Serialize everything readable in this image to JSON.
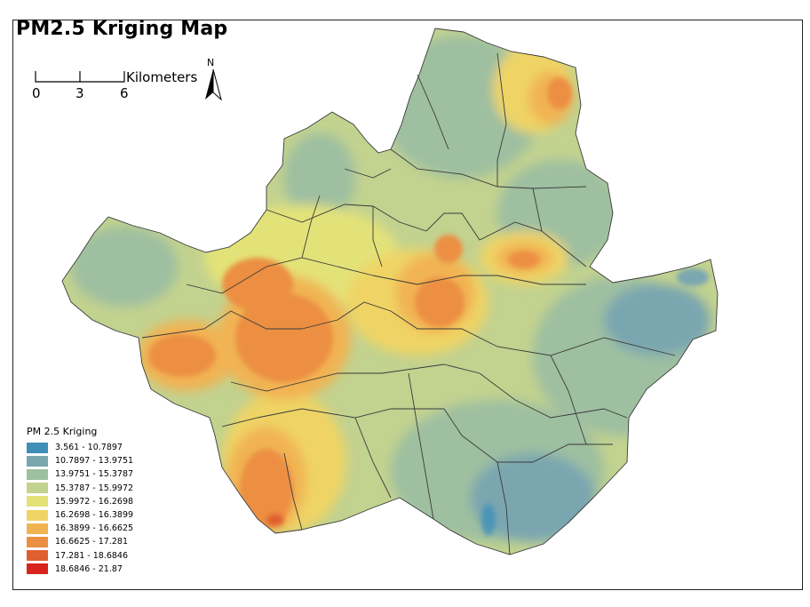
{
  "title": "PM2.5 Kriging Map",
  "scale": {
    "ticks": [
      "0",
      "3",
      "6"
    ],
    "unit": "Kilometers"
  },
  "north_label": "N",
  "legend": {
    "title": "PM 2.5 Kriging",
    "classes": [
      {
        "label": "3.561 - 10.7897",
        "color": "#3f8fb9"
      },
      {
        "label": "10.7897 - 13.9751",
        "color": "#7aa6b0"
      },
      {
        "label": "13.9751 - 15.3787",
        "color": "#9ebfa0"
      },
      {
        "label": "15.3787 - 15.9972",
        "color": "#c2d28f"
      },
      {
        "label": "15.9972 - 16.2698",
        "color": "#e3e279"
      },
      {
        "label": "16.2698 - 16.3899",
        "color": "#efd465"
      },
      {
        "label": "16.3899 - 16.6625",
        "color": "#f1b352"
      },
      {
        "label": "16.6625 - 17.281",
        "color": "#ec8f42"
      },
      {
        "label": "17.281 - 18.6846",
        "color": "#df5f2e"
      },
      {
        "label": "18.6846 - 21.87",
        "color": "#d8241c"
      }
    ]
  }
}
